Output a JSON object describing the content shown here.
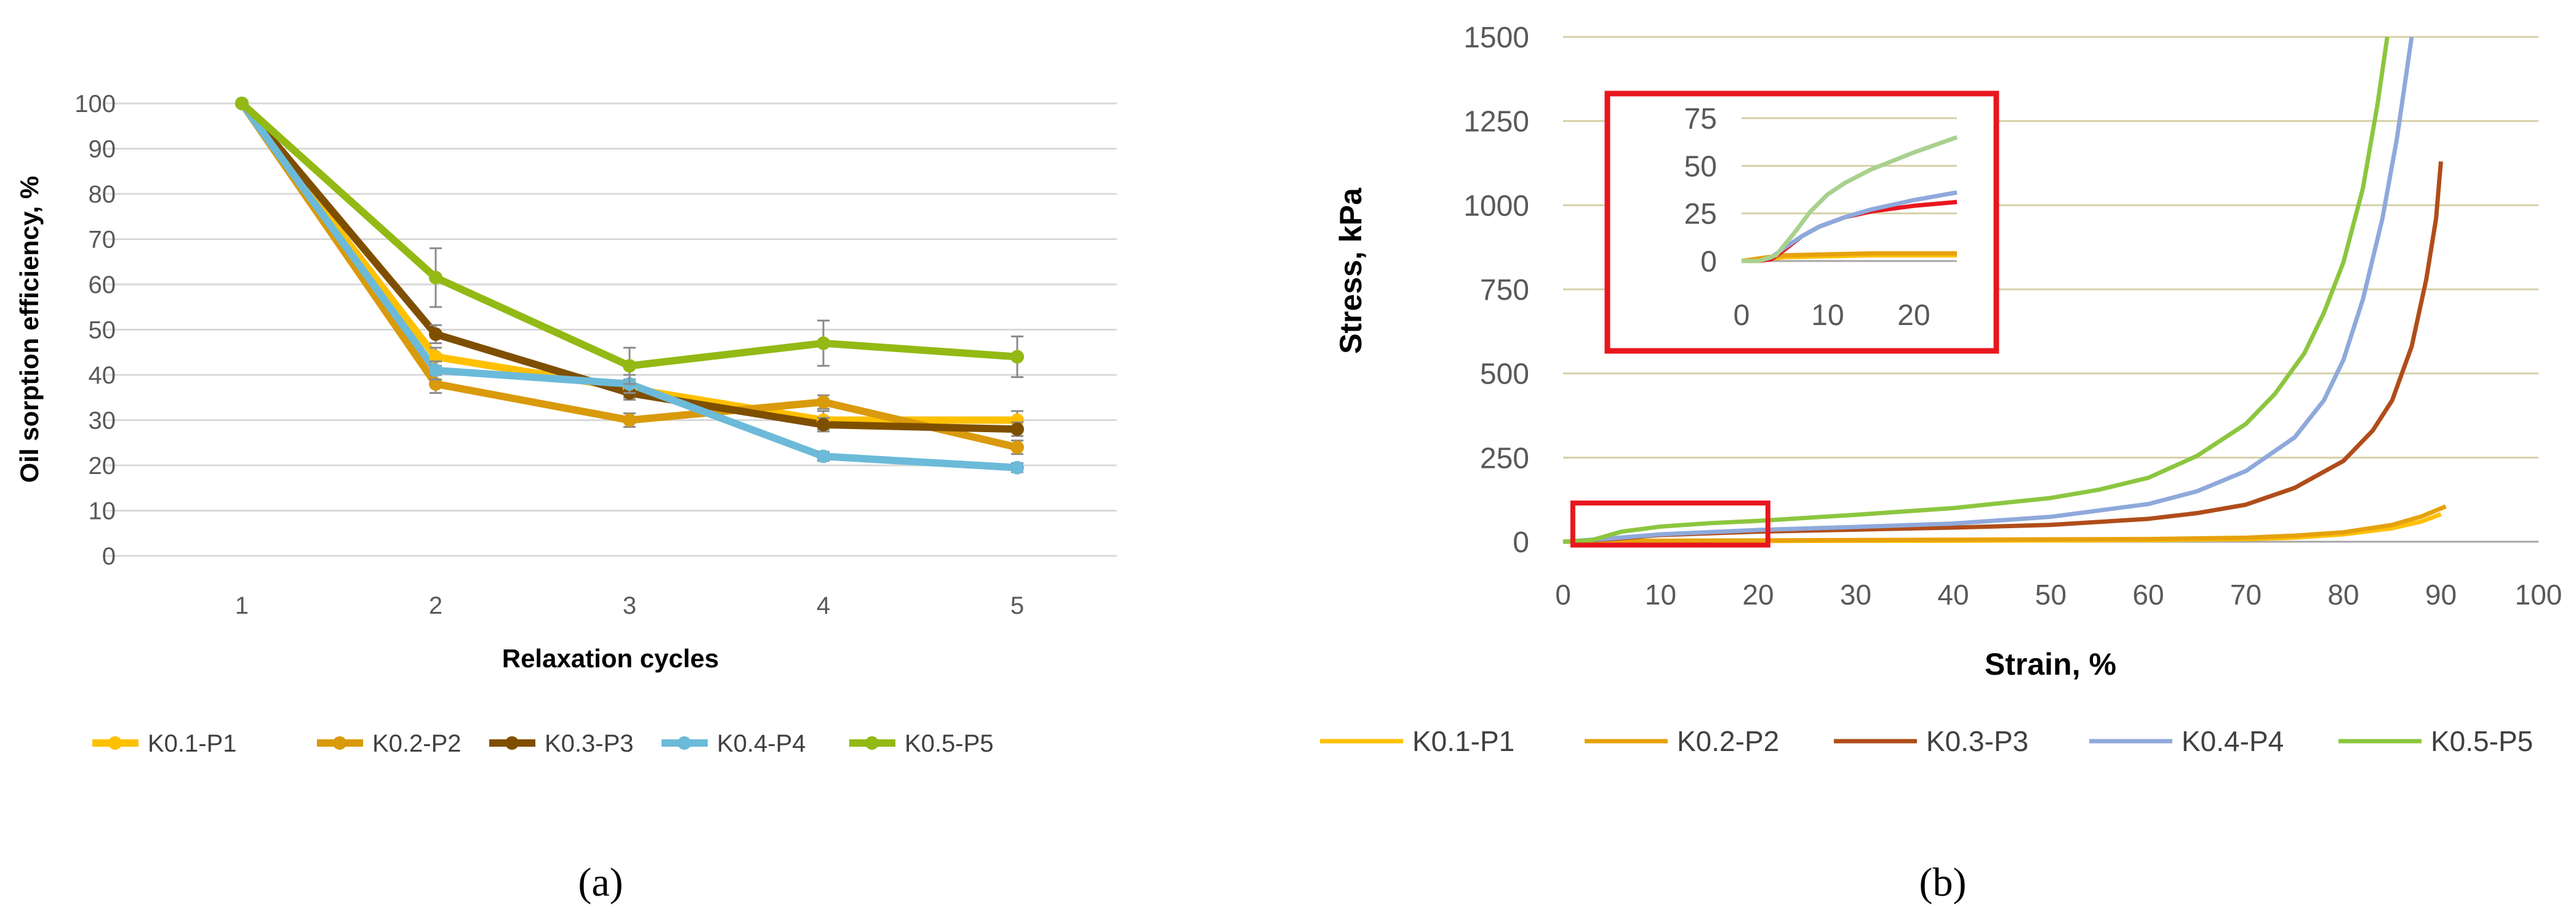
{
  "captions": {
    "a": "(a)",
    "b": "(b)"
  },
  "chart_data": [
    {
      "type": "line",
      "panel": "a",
      "xlabel": "Relaxation cycles",
      "ylabel": "Oil sorption efficiency, %",
      "categories": [
        "1",
        "2",
        "3",
        "4",
        "5"
      ],
      "ylim": [
        0,
        100
      ],
      "yticks": [
        0,
        10,
        20,
        30,
        40,
        50,
        60,
        70,
        80,
        90,
        100
      ],
      "grid": "horizontal",
      "legend_position": "bottom",
      "markers": true,
      "series": [
        {
          "name": "K0.1-P1",
          "color": "#ffc000",
          "values": [
            100,
            44,
            37,
            30,
            30
          ],
          "errors": [
            0,
            2,
            2,
            2,
            2
          ]
        },
        {
          "name": "K0.2-P2",
          "color": "#d99a0b",
          "values": [
            100,
            38,
            30,
            34,
            24
          ],
          "errors": [
            0,
            2,
            1.5,
            1.5,
            1.5
          ]
        },
        {
          "name": "K0.3-P3",
          "color": "#7f4f00",
          "values": [
            100,
            49,
            36,
            29,
            28
          ],
          "errors": [
            0,
            2,
            1.5,
            1.5,
            1.5
          ]
        },
        {
          "name": "K0.4-P4",
          "color": "#6cbad9",
          "values": [
            100,
            41,
            38,
            22,
            19.5
          ],
          "errors": [
            0,
            2,
            2,
            1,
            1
          ]
        },
        {
          "name": "K0.5-P5",
          "color": "#93b914",
          "values": [
            100,
            61.5,
            42,
            47,
            44
          ],
          "errors": [
            0,
            6.5,
            4,
            5,
            4.5
          ]
        }
      ]
    },
    {
      "type": "line",
      "panel": "b",
      "xlabel": "Strain, %",
      "ylabel": "Stress, kPa",
      "xlim": [
        0,
        100
      ],
      "ylim": [
        0,
        1500
      ],
      "xticks": [
        0,
        10,
        20,
        30,
        40,
        50,
        60,
        70,
        80,
        90,
        100
      ],
      "yticks": [
        0,
        250,
        500,
        750,
        1000,
        1250,
        1500
      ],
      "grid": "horizontal",
      "legend_position": "bottom",
      "highlight_box": {
        "x": [
          1,
          21
        ],
        "y": [
          -10,
          115
        ],
        "color": "#e8161e"
      },
      "series": [
        {
          "name": "K0.1-P1",
          "color": "#ffc000",
          "points": [
            [
              0,
              0
            ],
            [
              10,
              2
            ],
            [
              20,
              2
            ],
            [
              30,
              3
            ],
            [
              40,
              3
            ],
            [
              50,
              4
            ],
            [
              60,
              5
            ],
            [
              70,
              8
            ],
            [
              75,
              12
            ],
            [
              80,
              22
            ],
            [
              85,
              40
            ],
            [
              88,
              60
            ],
            [
              90,
              82
            ]
          ]
        },
        {
          "name": "K0.2-P2",
          "color": "#e6a10c",
          "points": [
            [
              0,
              0
            ],
            [
              10,
              3
            ],
            [
              20,
              4
            ],
            [
              30,
              5
            ],
            [
              40,
              6
            ],
            [
              50,
              7
            ],
            [
              60,
              8
            ],
            [
              70,
              12
            ],
            [
              75,
              18
            ],
            [
              80,
              28
            ],
            [
              85,
              50
            ],
            [
              88,
              75
            ],
            [
              90.5,
              105
            ]
          ]
        },
        {
          "name": "K0.3-P3",
          "color": "#b04d1a",
          "points": [
            [
              0,
              0
            ],
            [
              5,
              8
            ],
            [
              10,
              20
            ],
            [
              20,
              30
            ],
            [
              30,
              36
            ],
            [
              40,
              42
            ],
            [
              50,
              50
            ],
            [
              60,
              68
            ],
            [
              65,
              85
            ],
            [
              70,
              110
            ],
            [
              75,
              160
            ],
            [
              80,
              240
            ],
            [
              83,
              330
            ],
            [
              85,
              420
            ],
            [
              87,
              580
            ],
            [
              88.5,
              780
            ],
            [
              89.5,
              960
            ],
            [
              90,
              1130
            ]
          ]
        },
        {
          "name": "K0.4-P4",
          "color": "#8ea9db",
          "points": [
            [
              0,
              0
            ],
            [
              5,
              10
            ],
            [
              10,
              22
            ],
            [
              20,
              35
            ],
            [
              30,
              44
            ],
            [
              40,
              54
            ],
            [
              50,
              74
            ],
            [
              60,
              112
            ],
            [
              65,
              150
            ],
            [
              70,
              210
            ],
            [
              75,
              310
            ],
            [
              78,
              420
            ],
            [
              80,
              540
            ],
            [
              82,
              720
            ],
            [
              84,
              960
            ],
            [
              85.5,
              1200
            ],
            [
              87,
              1500
            ]
          ]
        },
        {
          "name": "K0.5-P5",
          "color": "#8cc63f",
          "points": [
            [
              0,
              0
            ],
            [
              3,
              5
            ],
            [
              6,
              30
            ],
            [
              10,
              45
            ],
            [
              15,
              55
            ],
            [
              20,
              62
            ],
            [
              30,
              80
            ],
            [
              40,
              100
            ],
            [
              50,
              130
            ],
            [
              55,
              155
            ],
            [
              60,
              190
            ],
            [
              65,
              255
            ],
            [
              70,
              350
            ],
            [
              73,
              440
            ],
            [
              76,
              560
            ],
            [
              78,
              680
            ],
            [
              80,
              830
            ],
            [
              82,
              1050
            ],
            [
              83.5,
              1300
            ],
            [
              84.5,
              1500
            ]
          ]
        }
      ],
      "inset": {
        "xlim": [
          0,
          25
        ],
        "ylim": [
          0,
          75
        ],
        "xticks": [
          0,
          10,
          20
        ],
        "yticks": [
          0,
          25,
          50,
          75
        ],
        "series": [
          {
            "name": "K0.1-P1",
            "color": "#ffc000",
            "points": [
              [
                0,
                0
              ],
              [
                3,
                1
              ],
              [
                5,
                2
              ],
              [
                10,
                2.5
              ],
              [
                15,
                3
              ],
              [
                20,
                3
              ],
              [
                25,
                3
              ]
            ]
          },
          {
            "name": "K0.2-P2",
            "color": "#e6a10c",
            "points": [
              [
                0,
                0
              ],
              [
                3,
                2
              ],
              [
                5,
                3
              ],
              [
                10,
                3.5
              ],
              [
                15,
                4
              ],
              [
                20,
                4
              ],
              [
                25,
                4
              ]
            ]
          },
          {
            "name": "K0.3-P3",
            "color": "#e8161e",
            "points": [
              [
                0,
                0
              ],
              [
                2,
                0
              ],
              [
                3.5,
                1
              ],
              [
                5,
                6
              ],
              [
                7,
                13
              ],
              [
                9,
                18
              ],
              [
                12,
                23
              ],
              [
                15,
                26
              ],
              [
                20,
                29
              ],
              [
                25,
                31
              ]
            ]
          },
          {
            "name": "K0.4-P4",
            "color": "#8ea9db",
            "points": [
              [
                0,
                0
              ],
              [
                2,
                0
              ],
              [
                3.5,
                2
              ],
              [
                5,
                7
              ],
              [
                7,
                13
              ],
              [
                9,
                18
              ],
              [
                12,
                23
              ],
              [
                15,
                27
              ],
              [
                20,
                32
              ],
              [
                25,
                36
              ]
            ]
          },
          {
            "name": "K0.5-P5",
            "color": "#a9d18e",
            "points": [
              [
                0,
                0
              ],
              [
                2,
                0
              ],
              [
                4,
                3
              ],
              [
                6,
                14
              ],
              [
                8,
                26
              ],
              [
                10,
                35
              ],
              [
                12,
                41
              ],
              [
                15,
                48
              ],
              [
                20,
                57
              ],
              [
                25,
                65
              ]
            ]
          }
        ]
      }
    }
  ]
}
